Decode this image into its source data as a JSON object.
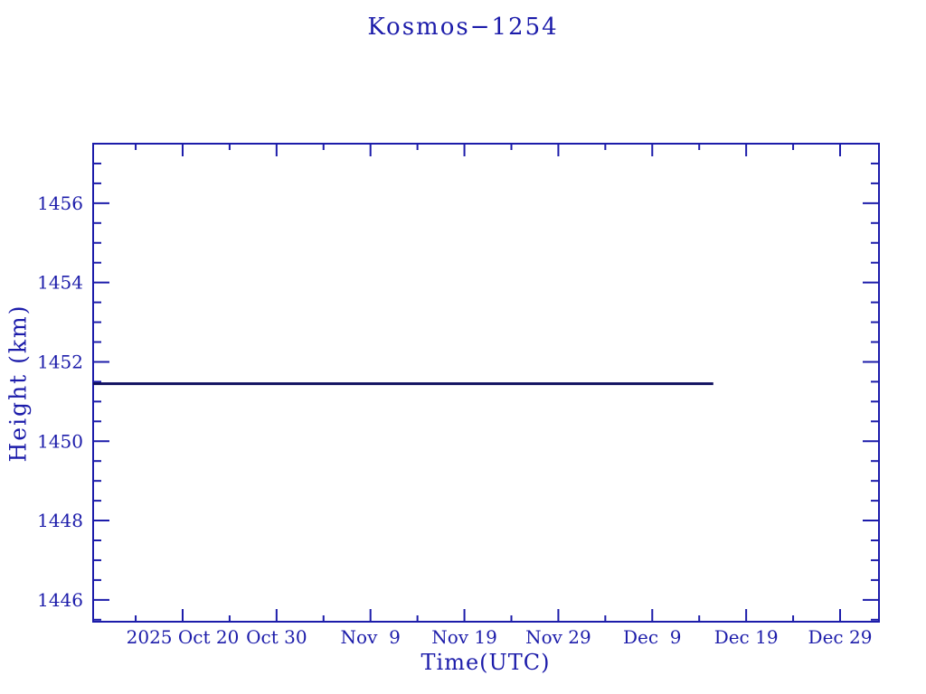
{
  "colors": {
    "ink": "#1c1caa",
    "data_line": "#10105f",
    "background": "#ffffff"
  },
  "chart_data": {
    "type": "line",
    "title": "Kosmos−1254",
    "xlabel": "Time(UTC)",
    "ylabel": "Height (km)",
    "legend": null,
    "grid": false,
    "frame": "box-with-inward-ticks-all-sides",
    "x_axis": {
      "unit": "days relative to 2025 Oct 20",
      "range_days": [
        -9.53,
        74.14
      ],
      "major_ticks": [
        {
          "day": 0,
          "label": "2025 Oct 20"
        },
        {
          "day": 10,
          "label": "Oct 30"
        },
        {
          "day": 20,
          "label": "Nov  9"
        },
        {
          "day": 30,
          "label": "Nov 19"
        },
        {
          "day": 40,
          "label": "Nov 29"
        },
        {
          "day": 50,
          "label": "Dec  9"
        },
        {
          "day": 60,
          "label": "Dec 19"
        },
        {
          "day": 70,
          "label": "Dec 29"
        }
      ],
      "minor_ticks_days": [
        -5,
        5,
        15,
        25,
        35,
        45,
        55,
        65
      ]
    },
    "y_axis": {
      "range_km": [
        1445.45,
        1457.5
      ],
      "major_ticks": [
        1446,
        1448,
        1450,
        1452,
        1454,
        1456
      ],
      "minor_tick_step": 0.5
    },
    "series": [
      {
        "name": "height",
        "points": [
          {
            "day": -9.53,
            "km": 1451.45
          },
          {
            "day": 56.5,
            "km": 1451.45
          }
        ]
      }
    ]
  }
}
